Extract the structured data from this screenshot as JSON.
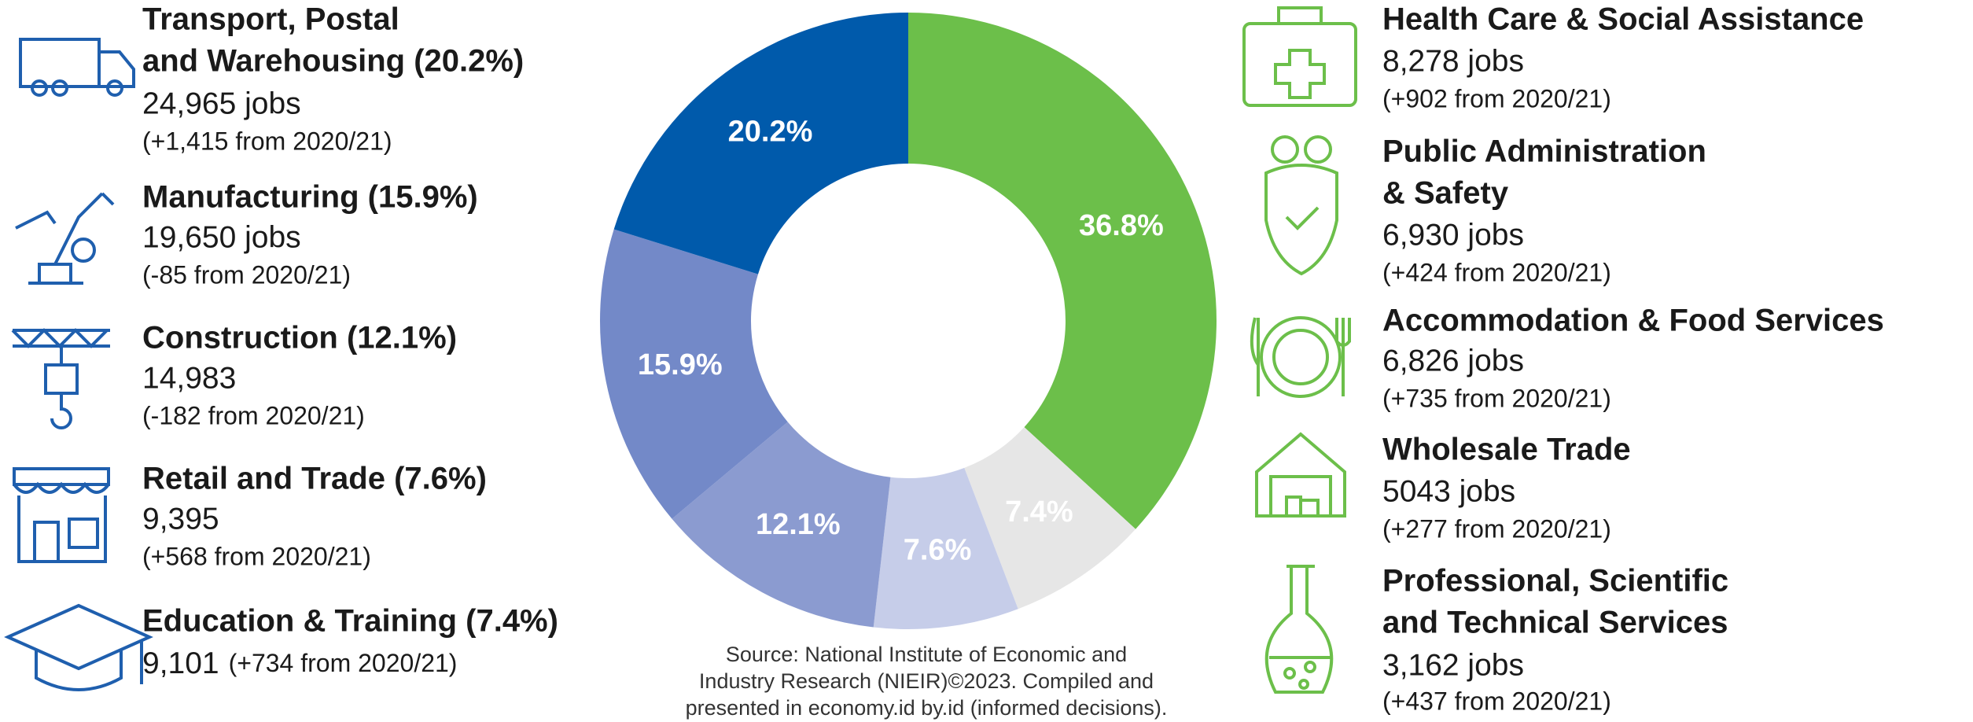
{
  "chart_data": {
    "type": "pie",
    "values": [
      36.8,
      7.4,
      7.6,
      12.1,
      15.9,
      20.2
    ],
    "value_labels": [
      "36.8%",
      "7.4%",
      "7.6%",
      "12.1%",
      "15.9%",
      "20.2%"
    ],
    "colors": [
      "#6cbf4a",
      "#e6e6e6",
      "#c6cde9",
      "#8b9bd0",
      "#7389c8",
      "#005aab"
    ],
    "donut": true
  },
  "left": [
    {
      "title": [
        "Transport, Postal",
        "and Warehousing (20.2%)"
      ],
      "jobs": "24,965 jobs",
      "change": "(+1,415 from 2020/21)"
    },
    {
      "title": [
        "Manufacturing (15.9%)"
      ],
      "jobs": "19,650 jobs",
      "change": "(-85 from 2020/21)"
    },
    {
      "title": [
        "Construction (12.1%)"
      ],
      "jobs": "14,983",
      "change": "(-182 from 2020/21)"
    },
    {
      "title": [
        "Retail and Trade (7.6%)"
      ],
      "jobs": "9,395",
      "change": "(+568 from 2020/21)"
    },
    {
      "title": [
        "Education & Training (7.4%)"
      ],
      "jobs": "9,101",
      "change": "(+734 from 2020/21)"
    }
  ],
  "right": [
    {
      "title": [
        "Health Care & Social Assistance"
      ],
      "jobs": "8,278 jobs",
      "change": "(+902 from 2020/21)"
    },
    {
      "title": [
        "Public Administration",
        "& Safety"
      ],
      "jobs": "6,930 jobs",
      "change": "(+424 from 2020/21)"
    },
    {
      "title": [
        "Accommodation & Food Services"
      ],
      "jobs": "6,826 jobs",
      "change": "(+735 from 2020/21)"
    },
    {
      "title": [
        "Wholesale Trade"
      ],
      "jobs": "5043 jobs",
      "change": "(+277 from 2020/21)"
    },
    {
      "title": [
        "Professional, Scientific",
        "and Technical Services"
      ],
      "jobs": "3,162 jobs",
      "change": "(+437 from 2020/21)"
    }
  ],
  "source": [
    "Source: National Institute of Economic and",
    "Industry Research (NIEIR)©2023. Compiled and",
    "presented in economy.id by.id (informed decisions)."
  ]
}
